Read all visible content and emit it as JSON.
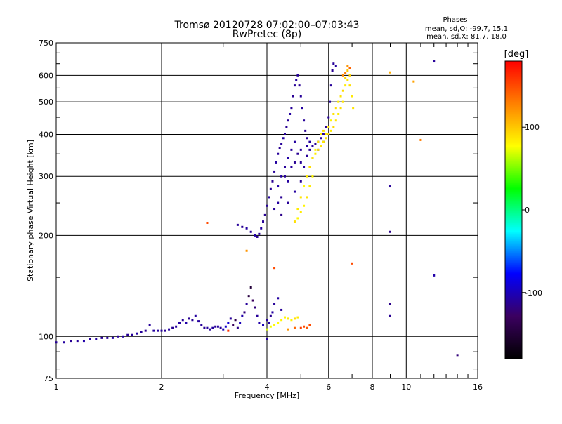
{
  "chart_data": {
    "type": "scatter",
    "title": "Tromsø 20120728 07:02:00–07:03:43",
    "subtitle": "RwPretec (8p)",
    "xlabel": "Frequency [MHz]",
    "ylabel": "Stationary phase Virtual Height [km]",
    "x_scale": "log",
    "y_scale": "log",
    "xlim": [
      1,
      16
    ],
    "ylim": [
      75,
      750
    ],
    "x_ticks": [
      1,
      2,
      4,
      6,
      8,
      10,
      16
    ],
    "x_tick_labels": [
      "1",
      "2",
      "4",
      "6",
      "8",
      "10",
      "16"
    ],
    "y_ticks": [
      75,
      100,
      200,
      300,
      400,
      500,
      600,
      750
    ],
    "y_tick_labels": [
      "75",
      "100",
      "200",
      "300",
      "400",
      "500",
      "600",
      "750"
    ],
    "grid": true,
    "stats": {
      "heading": "Phases",
      "line_o": "mean, sd,O: -99.7, 15.1",
      "line_x": "mean, sd,X: 81.7, 18.0"
    },
    "colorbar": {
      "unit": "[deg]",
      "range": [
        -180,
        180
      ],
      "ticks": [
        100,
        0,
        -100
      ],
      "tick_labels": [
        "100",
        "0",
        "-100"
      ],
      "colors": [
        "#000000",
        "#3b0060",
        "#0000ff",
        "#00ffff",
        "#00ff00",
        "#ffff00",
        "#ff8000",
        "#ff0000"
      ]
    },
    "series": [
      {
        "points": [
          [
            1.0,
            96,
            -110
          ],
          [
            1.05,
            96,
            -108
          ],
          [
            1.1,
            97,
            -112
          ],
          [
            1.15,
            97,
            -110
          ],
          [
            1.2,
            97,
            -105
          ],
          [
            1.25,
            98,
            -110
          ],
          [
            1.3,
            98,
            -108
          ],
          [
            1.35,
            99,
            -112
          ],
          [
            1.4,
            99,
            -110
          ],
          [
            1.45,
            99,
            -106
          ],
          [
            1.5,
            100,
            -110
          ],
          [
            1.55,
            100,
            -108
          ],
          [
            1.6,
            101,
            -111
          ],
          [
            1.65,
            101,
            -109
          ],
          [
            1.7,
            102,
            -107
          ],
          [
            1.75,
            103,
            -110
          ],
          [
            1.8,
            104,
            -112
          ],
          [
            1.85,
            108,
            -110
          ],
          [
            1.9,
            104,
            -108
          ],
          [
            1.95,
            104,
            -109
          ],
          [
            2.0,
            104,
            -110
          ],
          [
            2.05,
            104,
            -111
          ],
          [
            2.1,
            105,
            -108
          ],
          [
            2.15,
            106,
            -112
          ],
          [
            2.2,
            107,
            -110
          ],
          [
            2.25,
            110,
            -108
          ],
          [
            2.3,
            112,
            -110
          ],
          [
            2.35,
            110,
            -106
          ],
          [
            2.4,
            113,
            -112
          ],
          [
            2.45,
            112,
            -110
          ],
          [
            2.5,
            115,
            -108
          ],
          [
            2.55,
            111,
            -109
          ],
          [
            2.6,
            108,
            -110
          ],
          [
            2.65,
            106,
            -112
          ],
          [
            2.7,
            106,
            -108
          ],
          [
            2.75,
            105,
            -110
          ],
          [
            2.8,
            106,
            -108
          ],
          [
            2.85,
            107,
            -111
          ],
          [
            2.9,
            107,
            -109
          ],
          [
            2.95,
            106,
            -110
          ],
          [
            3.0,
            105,
            -100
          ],
          [
            3.05,
            107,
            -95
          ],
          [
            3.1,
            110,
            -90
          ],
          [
            3.15,
            113,
            -110
          ],
          [
            3.2,
            108,
            -130
          ],
          [
            3.25,
            112,
            -140
          ],
          [
            3.3,
            106,
            -115
          ],
          [
            3.35,
            110,
            -100
          ],
          [
            3.4,
            115,
            -105
          ],
          [
            3.45,
            118,
            -120
          ],
          [
            3.5,
            125,
            -110
          ],
          [
            3.55,
            132,
            -145
          ],
          [
            3.6,
            140,
            -150
          ],
          [
            3.65,
            128,
            -130
          ],
          [
            3.7,
            122,
            -120
          ],
          [
            3.75,
            115,
            -110
          ],
          [
            3.8,
            110,
            -105
          ],
          [
            3.9,
            108,
            -100
          ],
          [
            4.0,
            112,
            -110
          ],
          [
            4.05,
            110,
            -106
          ],
          [
            4.1,
            115,
            -112
          ],
          [
            4.15,
            118,
            -108
          ],
          [
            4.2,
            125,
            -110
          ],
          [
            4.3,
            130,
            -108
          ],
          [
            4.4,
            120,
            -110
          ],
          [
            4.0,
            105,
            70
          ],
          [
            4.1,
            107,
            75
          ],
          [
            4.2,
            108,
            80
          ],
          [
            4.3,
            110,
            78
          ],
          [
            4.4,
            112,
            82
          ],
          [
            4.5,
            114,
            80
          ],
          [
            4.6,
            113,
            85
          ],
          [
            4.7,
            112,
            82
          ],
          [
            4.8,
            113,
            90
          ],
          [
            4.9,
            114,
            85
          ],
          [
            4.6,
            105,
            120
          ],
          [
            4.8,
            106,
            140
          ],
          [
            5.0,
            106,
            155
          ],
          [
            5.1,
            107,
            150
          ],
          [
            5.2,
            106,
            145
          ],
          [
            5.3,
            108,
            150
          ],
          [
            3.3,
            215,
            -110
          ],
          [
            3.4,
            212,
            -112
          ],
          [
            3.5,
            210,
            -108
          ],
          [
            3.6,
            205,
            -110
          ],
          [
            3.7,
            200,
            -106
          ],
          [
            3.75,
            198,
            -112
          ],
          [
            3.8,
            202,
            -110
          ],
          [
            3.85,
            210,
            -108
          ],
          [
            3.9,
            220,
            -110
          ],
          [
            3.95,
            230,
            -112
          ],
          [
            4.0,
            245,
            -110
          ],
          [
            4.05,
            260,
            -108
          ],
          [
            4.1,
            275,
            -110
          ],
          [
            4.15,
            290,
            -112
          ],
          [
            4.2,
            310,
            -110
          ],
          [
            4.25,
            330,
            -108
          ],
          [
            4.3,
            350,
            -110
          ],
          [
            4.35,
            365,
            -112
          ],
          [
            4.4,
            375,
            -110
          ],
          [
            4.45,
            390,
            -108
          ],
          [
            4.5,
            400,
            -110
          ],
          [
            4.55,
            420,
            -112
          ],
          [
            4.6,
            440,
            -110
          ],
          [
            4.65,
            460,
            -108
          ],
          [
            4.7,
            480,
            -110
          ],
          [
            4.75,
            520,
            -112
          ],
          [
            4.8,
            560,
            -110
          ],
          [
            4.85,
            580,
            -108
          ],
          [
            4.9,
            600,
            -110
          ],
          [
            4.95,
            560,
            -112
          ],
          [
            5.0,
            520,
            -110
          ],
          [
            5.05,
            480,
            -108
          ],
          [
            5.1,
            440,
            -110
          ],
          [
            5.15,
            410,
            -112
          ],
          [
            5.2,
            390,
            -110
          ],
          [
            5.3,
            380,
            -108
          ],
          [
            5.4,
            370,
            -110
          ],
          [
            5.5,
            375,
            -112
          ],
          [
            5.6,
            380,
            -110
          ],
          [
            5.7,
            390,
            -108
          ],
          [
            5.8,
            400,
            -110
          ],
          [
            5.9,
            420,
            -112
          ],
          [
            6.0,
            450,
            -110
          ],
          [
            6.05,
            500,
            -108
          ],
          [
            6.1,
            560,
            -110
          ],
          [
            6.15,
            620,
            -112
          ],
          [
            6.2,
            650,
            -110
          ],
          [
            6.3,
            640,
            -108
          ],
          [
            4.3,
            280,
            -105
          ],
          [
            4.4,
            300,
            -108
          ],
          [
            4.5,
            320,
            -110
          ],
          [
            4.6,
            340,
            -106
          ],
          [
            4.7,
            360,
            -110
          ],
          [
            4.8,
            380,
            -108
          ],
          [
            4.9,
            350,
            -112
          ],
          [
            5.0,
            330,
            -110
          ],
          [
            5.1,
            320,
            -108
          ],
          [
            5.2,
            345,
            -110
          ],
          [
            5.3,
            360,
            -112
          ],
          [
            5.4,
            340,
            -110
          ],
          [
            5.6,
            360,
            -108
          ],
          [
            5.8,
            380,
            -110
          ],
          [
            6.0,
            400,
            -112
          ],
          [
            4.2,
            240,
            -110
          ],
          [
            4.3,
            250,
            -108
          ],
          [
            4.4,
            260,
            -112
          ],
          [
            4.5,
            300,
            -110
          ],
          [
            4.6,
            290,
            -108
          ],
          [
            4.7,
            320,
            -110
          ],
          [
            4.8,
            330,
            -112
          ],
          [
            5.0,
            360,
            -110
          ],
          [
            5.2,
            370,
            -108
          ],
          [
            4.4,
            230,
            -115
          ],
          [
            4.6,
            250,
            -110
          ],
          [
            4.8,
            270,
            -108
          ],
          [
            5.0,
            290,
            -112
          ],
          [
            4.8,
            220,
            90
          ],
          [
            4.9,
            240,
            85
          ],
          [
            5.0,
            260,
            88
          ],
          [
            5.1,
            280,
            80
          ],
          [
            5.2,
            300,
            85
          ],
          [
            5.3,
            320,
            90
          ],
          [
            5.4,
            340,
            86
          ],
          [
            5.5,
            360,
            80
          ],
          [
            5.6,
            380,
            88
          ],
          [
            5.7,
            400,
            85
          ],
          [
            5.8,
            410,
            90
          ],
          [
            5.9,
            400,
            85
          ],
          [
            6.0,
            420,
            88
          ],
          [
            6.1,
            440,
            82
          ],
          [
            6.2,
            460,
            88
          ],
          [
            6.3,
            480,
            90
          ],
          [
            6.4,
            500,
            85
          ],
          [
            6.5,
            520,
            88
          ],
          [
            6.6,
            540,
            92
          ],
          [
            6.7,
            560,
            85
          ],
          [
            6.8,
            580,
            88
          ],
          [
            6.9,
            560,
            90
          ],
          [
            7.0,
            520,
            86
          ],
          [
            7.05,
            480,
            88
          ],
          [
            6.9,
            600,
            95
          ],
          [
            6.8,
            620,
            100
          ],
          [
            6.7,
            590,
            92
          ],
          [
            6.6,
            500,
            88
          ],
          [
            6.5,
            480,
            90
          ],
          [
            6.4,
            460,
            85
          ],
          [
            6.3,
            440,
            88
          ],
          [
            6.2,
            420,
            92
          ],
          [
            6.1,
            410,
            85
          ],
          [
            6.0,
            400,
            88
          ],
          [
            5.9,
            390,
            90
          ],
          [
            5.8,
            380,
            86
          ],
          [
            5.7,
            370,
            88
          ],
          [
            5.6,
            360,
            90
          ],
          [
            5.5,
            350,
            85
          ],
          [
            5.4,
            300,
            80
          ],
          [
            5.3,
            280,
            85
          ],
          [
            5.2,
            260,
            88
          ],
          [
            5.1,
            245,
            82
          ],
          [
            5.0,
            235,
            85
          ],
          [
            4.9,
            225,
            80
          ],
          [
            6.8,
            640,
            120
          ],
          [
            6.7,
            610,
            130
          ],
          [
            6.9,
            630,
            140
          ],
          [
            6.6,
            600,
            125
          ],
          [
            9.0,
            280,
            -110
          ],
          [
            9.0,
            205,
            -115
          ],
          [
            9.0,
            125,
            -115
          ],
          [
            9.0,
            115,
            -112
          ],
          [
            9.0,
            612,
            110
          ],
          [
            10.5,
            575,
            115
          ],
          [
            11.0,
            385,
            130
          ],
          [
            12.0,
            660,
            -110
          ],
          [
            12.0,
            152,
            -105
          ],
          [
            14.0,
            88,
            -120
          ],
          [
            7.0,
            165,
            150
          ],
          [
            4.2,
            160,
            150
          ],
          [
            3.5,
            180,
            120
          ],
          [
            4.0,
            98,
            -108
          ],
          [
            2.7,
            218,
            150
          ],
          [
            3.1,
            104,
            160
          ]
        ]
      }
    ]
  }
}
